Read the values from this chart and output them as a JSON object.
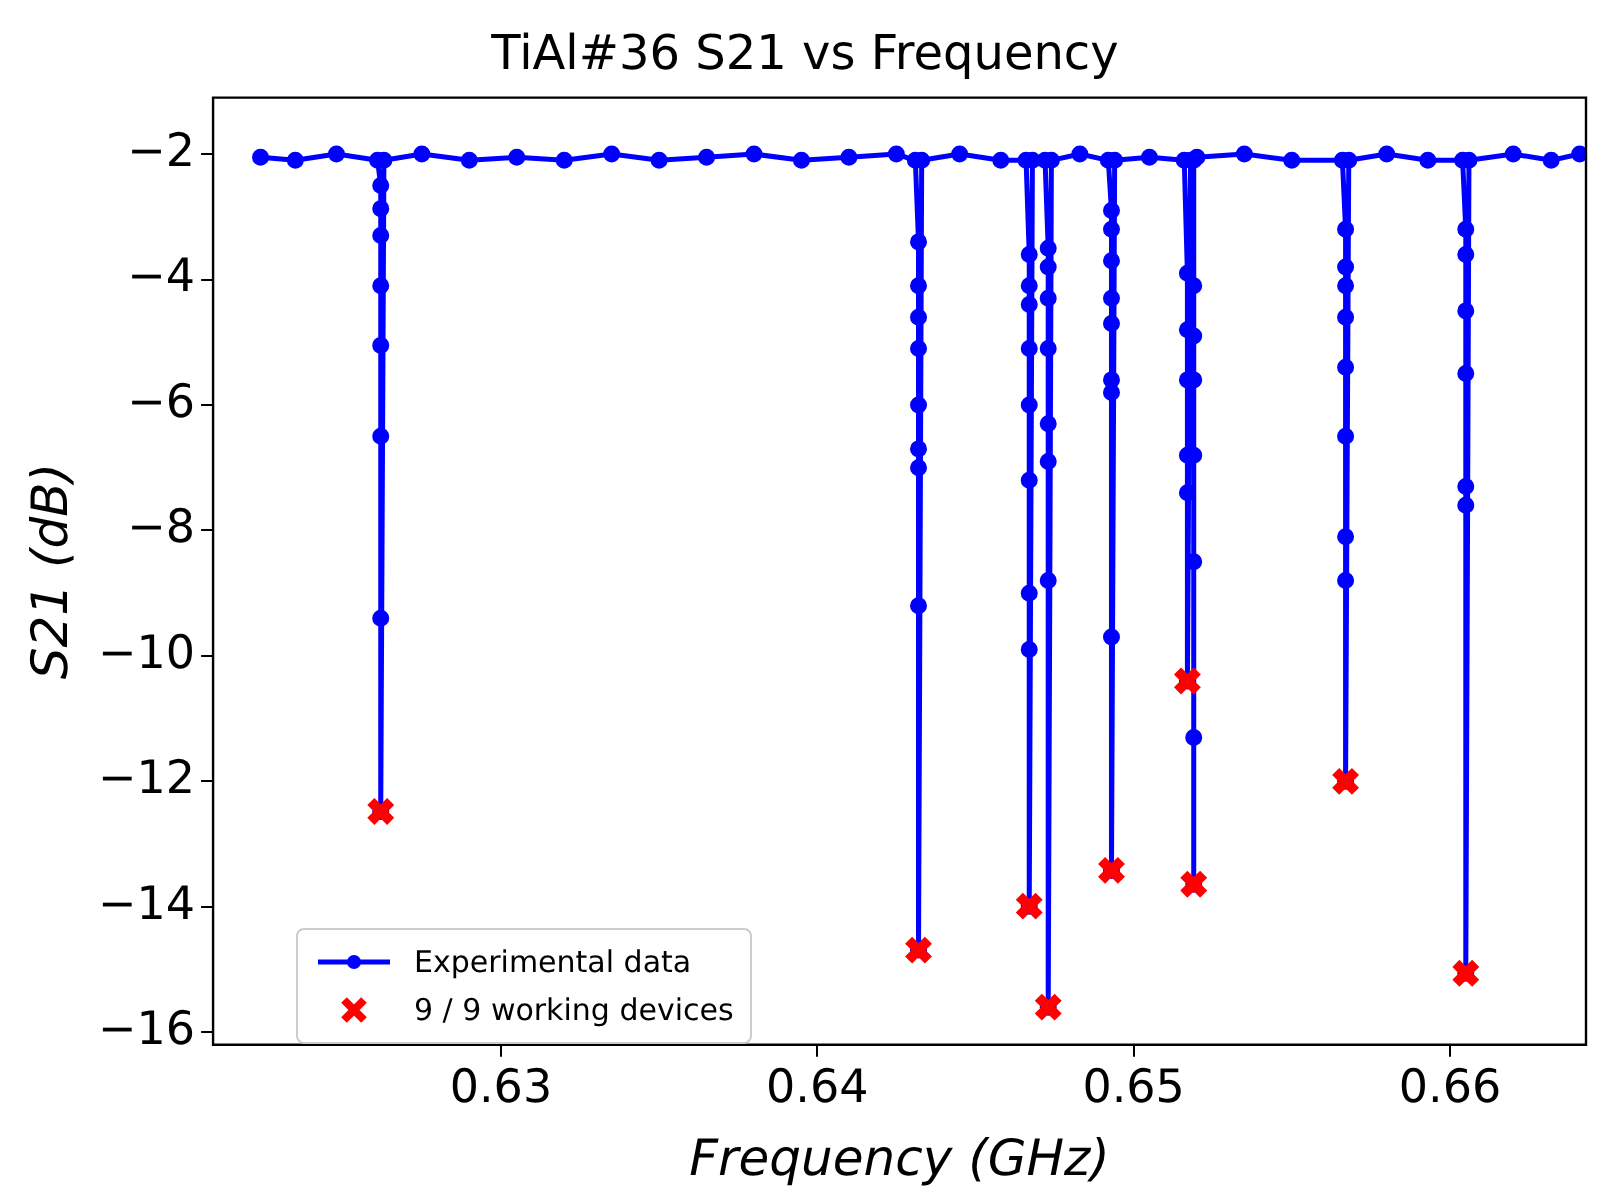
{
  "chart_data": {
    "type": "line",
    "title": "TiAl#36 S21 vs Frequency",
    "xlabel": "Frequency (GHz)",
    "ylabel": "S21 (dB)",
    "xlim": [
      0.6209,
      0.6643
    ],
    "ylim": [
      -16.2,
      -1.1
    ],
    "xticks": [
      0.63,
      0.64,
      0.65,
      0.66
    ],
    "yticks": [
      -2,
      -4,
      -6,
      -8,
      -10,
      -12,
      -14,
      -16
    ],
    "grid": false,
    "legend": "bottom left",
    "series": [
      {
        "name": "Experimental data",
        "color": "#0000ff",
        "marker": "circle",
        "line_style": "solid",
        "x": [
          0.6224,
          0.6235,
          0.6248,
          0.6261,
          0.6262,
          0.6262,
          0.6262,
          0.6262,
          0.6262,
          0.6262,
          0.6262,
          0.6262,
          0.6263,
          0.6275,
          0.629,
          0.6305,
          0.632,
          0.6335,
          0.635,
          0.6365,
          0.638,
          0.6395,
          0.641,
          0.6425,
          0.6431,
          0.6432,
          0.6432,
          0.6432,
          0.6432,
          0.6432,
          0.6432,
          0.6432,
          0.6432,
          0.6432,
          0.6433,
          0.6445,
          0.6458,
          0.6466,
          0.6467,
          0.6467,
          0.6467,
          0.6467,
          0.6467,
          0.6467,
          0.6467,
          0.6467,
          0.6467,
          0.6468,
          0.6472,
          0.6473,
          0.6473,
          0.6473,
          0.6473,
          0.6473,
          0.6473,
          0.6473,
          0.6473,
          0.6474,
          0.6483,
          0.6492,
          0.6493,
          0.6493,
          0.6493,
          0.6493,
          0.6493,
          0.6493,
          0.6493,
          0.6493,
          0.6493,
          0.6494,
          0.6505,
          0.6516,
          0.6517,
          0.6517,
          0.6517,
          0.6517,
          0.6517,
          0.6517,
          0.6518,
          0.6519,
          0.6519,
          0.6519,
          0.6519,
          0.6519,
          0.6519,
          0.6519,
          0.6519,
          0.652,
          0.6535,
          0.655,
          0.6566,
          0.6567,
          0.6567,
          0.6567,
          0.6567,
          0.6567,
          0.6567,
          0.6567,
          0.6567,
          0.6567,
          0.6568,
          0.658,
          0.6593,
          0.6604,
          0.6605,
          0.6605,
          0.6605,
          0.6605,
          0.6605,
          0.6605,
          0.6605,
          0.6606,
          0.662,
          0.6632,
          0.6641
        ],
        "values": [
          -2.05,
          -2.1,
          -2.0,
          -2.1,
          -2.5,
          -2.87,
          -3.3,
          -4.1,
          -5.05,
          -6.5,
          -9.4,
          -12.48,
          -2.1,
          -2.0,
          -2.1,
          -2.05,
          -2.1,
          -2.0,
          -2.1,
          -2.05,
          -2.0,
          -2.1,
          -2.05,
          -2.0,
          -2.1,
          -3.4,
          -4.1,
          -4.6,
          -5.1,
          -6.0,
          -6.7,
          -7.0,
          -9.2,
          -14.69,
          -2.1,
          -2.0,
          -2.1,
          -2.1,
          -3.6,
          -4.1,
          -4.4,
          -5.1,
          -6.0,
          -7.2,
          -9.0,
          -9.9,
          -13.99,
          -2.1,
          -2.1,
          -3.5,
          -3.8,
          -4.3,
          -5.1,
          -6.3,
          -6.9,
          -8.8,
          -15.6,
          -2.1,
          -2.0,
          -2.1,
          -2.9,
          -3.2,
          -3.7,
          -4.3,
          -4.7,
          -5.6,
          -5.8,
          -9.7,
          -13.42,
          -2.1,
          -2.05,
          -2.1,
          -3.9,
          -4.8,
          -5.6,
          -6.8,
          -7.4,
          -10.4,
          -2.1,
          -4.1,
          -4.9,
          -5.6,
          -6.8,
          -8.5,
          -11.3,
          -13.64,
          -2.1,
          -2.05,
          -2.0,
          -2.1,
          -2.1,
          -3.2,
          -3.8,
          -4.1,
          -4.6,
          -5.4,
          -6.5,
          -8.1,
          -8.8,
          -12.0,
          -2.1,
          -2.0,
          -2.1,
          -2.1,
          -3.2,
          -3.6,
          -4.5,
          -5.5,
          -7.3,
          -7.6,
          -15.06,
          -2.1,
          -2.0,
          -2.1,
          -2.0
        ]
      },
      {
        "name": "9 / 9 working devices",
        "type": "scatter",
        "color": "#ff0000",
        "marker": "cross",
        "x": [
          0.6262,
          0.6432,
          0.6467,
          0.6473,
          0.6493,
          0.6517,
          0.6519,
          0.6567,
          0.6605
        ],
        "values": [
          -12.48,
          -14.69,
          -13.99,
          -15.6,
          -13.42,
          -10.4,
          -13.64,
          -12.0,
          -15.06
        ]
      }
    ]
  }
}
